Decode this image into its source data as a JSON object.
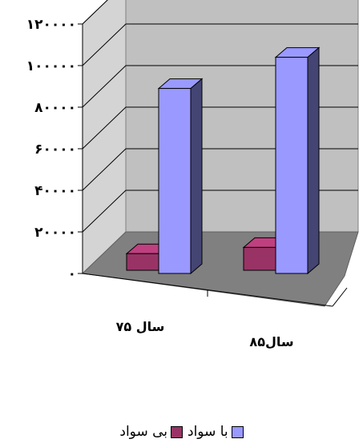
{
  "chart_data": {
    "type": "bar",
    "categories": [
      "سال ۷۵",
      "سال۸۵"
    ],
    "series": [
      {
        "name": "بی سواد",
        "values": [
          8000,
          11000
        ],
        "color": "#993366"
      },
      {
        "name": "با سواد",
        "values": [
          89000,
          104000
        ],
        "color": "#9999FF"
      }
    ],
    "ylim": [
      0,
      120000
    ],
    "yticks": [
      0,
      20000,
      40000,
      60000,
      80000,
      100000,
      120000
    ],
    "ytick_labels": [
      "۰",
      "۲۰۰۰۰",
      "۴۰۰۰۰",
      "۶۰۰۰۰",
      "۸۰۰۰۰",
      "۱۰۰۰۰۰",
      "۱۲۰۰۰۰"
    ],
    "grid": true,
    "legend_position": "bottom"
  }
}
